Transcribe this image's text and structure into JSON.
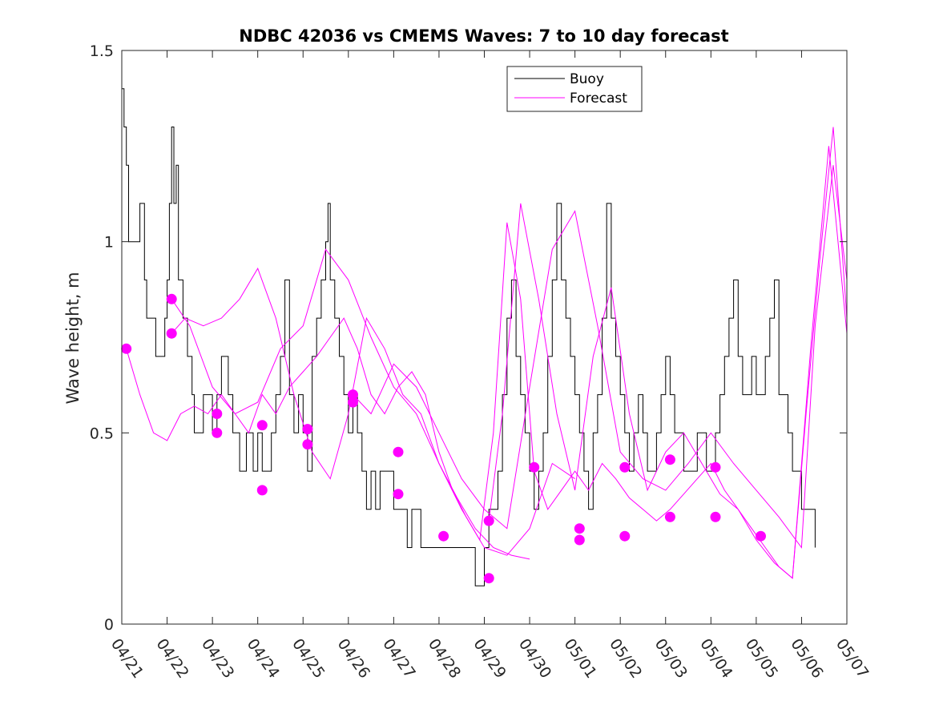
{
  "chart_data": {
    "type": "line",
    "title": "NDBC 42036 vs CMEMS Waves: 7 to 10 day forecast",
    "xlabel": "",
    "ylabel": "Wave height, m",
    "xlim": [
      0,
      16
    ],
    "ylim": [
      0,
      1.5
    ],
    "x_ticks": [
      0,
      1,
      2,
      3,
      4,
      5,
      6,
      7,
      8,
      9,
      10,
      11,
      12,
      13,
      14,
      15,
      16
    ],
    "x_tick_labels": [
      "04/21",
      "04/22",
      "04/23",
      "04/24",
      "04/25",
      "04/26",
      "04/27",
      "04/28",
      "04/29",
      "04/30",
      "05/01",
      "05/02",
      "05/03",
      "05/04",
      "05/05",
      "05/06",
      "05/07"
    ],
    "y_ticks": [
      0,
      0.5,
      1,
      1.5
    ],
    "y_tick_labels": [
      "0",
      "0.5",
      "1",
      "1.5"
    ],
    "x_note": "x values are days since 04/21 00:00",
    "grid": false,
    "legend_position": "top-center",
    "colors": {
      "buoy": "#000000",
      "forecast": "#ff00ff"
    },
    "series": [
      {
        "name": "Buoy",
        "color": "#000000",
        "step": true,
        "x": [
          0,
          0.05,
          0.1,
          0.15,
          0.25,
          0.4,
          0.5,
          0.55,
          0.65,
          0.75,
          0.95,
          1.0,
          1.05,
          1.1,
          1.15,
          1.2,
          1.25,
          1.35,
          1.45,
          1.55,
          1.6,
          1.7,
          1.8,
          1.9,
          2.0,
          2.1,
          2.2,
          2.35,
          2.45,
          2.5,
          2.6,
          2.65,
          2.75,
          2.9,
          3.0,
          3.1,
          3.2,
          3.3,
          3.4,
          3.5,
          3.6,
          3.7,
          3.8,
          3.9,
          4.0,
          4.1,
          4.2,
          4.3,
          4.4,
          4.5,
          4.55,
          4.6,
          4.7,
          4.8,
          4.9,
          5.0,
          5.1,
          5.2,
          5.3,
          5.4,
          5.5,
          5.6,
          5.7,
          5.8,
          5.9,
          6.0,
          6.1,
          6.2,
          6.3,
          6.4,
          6.5,
          6.6,
          6.7,
          6.8,
          6.9,
          7.0,
          7.2,
          7.4,
          7.6,
          7.8,
          8.0,
          8.1,
          8.2,
          8.3,
          8.4,
          8.5,
          8.6,
          8.7,
          8.8,
          8.9,
          9.0,
          9.1,
          9.2,
          9.3,
          9.4,
          9.5,
          9.6,
          9.7,
          9.8,
          9.9,
          10.0,
          10.1,
          10.2,
          10.3,
          10.4,
          10.5,
          10.6,
          10.7,
          10.8,
          10.9,
          11.0,
          11.1,
          11.2,
          11.3,
          11.4,
          11.5,
          11.6,
          11.7,
          11.8,
          11.9,
          12.0,
          12.1,
          12.2,
          12.3,
          12.4,
          12.5,
          12.6,
          12.7,
          12.8,
          12.9,
          13.0,
          13.1,
          13.2,
          13.3,
          13.4,
          13.5,
          13.6,
          13.7,
          13.8,
          13.9,
          14.0,
          14.1,
          14.2,
          14.3,
          14.4,
          14.5,
          14.6,
          14.7,
          14.8,
          14.9,
          15.0,
          15.1,
          15.2,
          15.3
        ],
        "y": [
          1.4,
          1.3,
          1.2,
          1.0,
          1.0,
          1.1,
          0.9,
          0.8,
          0.8,
          0.7,
          0.8,
          0.9,
          1.1,
          1.3,
          1.1,
          1.2,
          0.9,
          0.8,
          0.7,
          0.6,
          0.5,
          0.5,
          0.6,
          0.6,
          0.5,
          0.6,
          0.7,
          0.6,
          0.5,
          0.5,
          0.4,
          0.4,
          0.5,
          0.4,
          0.5,
          0.4,
          0.4,
          0.5,
          0.6,
          0.7,
          0.9,
          0.6,
          0.5,
          0.6,
          0.5,
          0.4,
          0.7,
          0.8,
          0.9,
          1.0,
          1.1,
          0.9,
          0.8,
          0.7,
          0.6,
          0.5,
          0.6,
          0.5,
          0.4,
          0.3,
          0.4,
          0.3,
          0.4,
          0.4,
          0.4,
          0.3,
          0.3,
          0.3,
          0.2,
          0.3,
          0.3,
          0.2,
          0.2,
          0.2,
          0.2,
          0.2,
          0.2,
          0.2,
          0.2,
          0.1,
          0.2,
          0.3,
          0.3,
          0.4,
          0.6,
          0.8,
          0.9,
          0.7,
          0.6,
          0.5,
          0.4,
          0.3,
          0.4,
          0.5,
          0.7,
          0.9,
          1.1,
          0.9,
          0.8,
          0.7,
          0.6,
          0.5,
          0.4,
          0.3,
          0.5,
          0.6,
          0.8,
          1.1,
          0.8,
          0.7,
          0.6,
          0.5,
          0.4,
          0.5,
          0.6,
          0.5,
          0.4,
          0.4,
          0.5,
          0.6,
          0.7,
          0.6,
          0.5,
          0.5,
          0.4,
          0.4,
          0.4,
          0.5,
          0.5,
          0.4,
          0.4,
          0.5,
          0.6,
          0.7,
          0.8,
          0.9,
          0.7,
          0.6,
          0.6,
          0.7,
          0.6,
          0.6,
          0.7,
          0.8,
          0.9,
          0.6,
          0.6,
          0.5,
          0.4,
          0.4,
          0.3,
          0.3,
          0.3,
          0.2
        ]
      },
      {
        "name": "Forecast",
        "color": "#ff00ff",
        "x": [
          0.1,
          0.4,
          0.7,
          1.0,
          1.3,
          1.6,
          1.9,
          2.2,
          2.5,
          2.8,
          3.1,
          3.4,
          3.7,
          4.0,
          4.3,
          4.6,
          4.9,
          5.2,
          5.5,
          5.8,
          6.1,
          6.4,
          6.7,
          7.0,
          7.3,
          7.6,
          7.9,
          8.2,
          8.5,
          8.8,
          9.1,
          9.4,
          9.7,
          10.0,
          10.3,
          10.6,
          10.9,
          11.2,
          11.5,
          11.8,
          12.1,
          12.4,
          12.7,
          13.0,
          13.3,
          13.6,
          13.9,
          14.2,
          14.5,
          14.8,
          15.1,
          15.4,
          15.7,
          16.0
        ],
        "y": [
          0.72,
          0.6,
          0.5,
          0.48,
          0.55,
          0.57,
          0.55,
          0.6,
          0.55,
          0.5,
          0.6,
          0.55,
          0.62,
          0.66,
          0.7,
          0.75,
          0.8,
          0.72,
          0.6,
          0.55,
          0.62,
          0.66,
          0.6,
          0.45,
          0.35,
          0.28,
          0.22,
          0.5,
          1.05,
          0.85,
          0.4,
          0.3,
          0.35,
          0.4,
          0.35,
          0.42,
          0.38,
          0.33,
          0.3,
          0.27,
          0.3,
          0.34,
          0.38,
          0.42,
          0.35,
          0.3,
          0.25,
          0.2,
          0.15,
          0.12,
          0.55,
          0.95,
          1.3,
          0.8
        ]
      }
    ],
    "forecast_markers": {
      "x": [
        0.1,
        1.1,
        1.1,
        2.1,
        2.1,
        3.1,
        3.1,
        4.1,
        4.1,
        5.1,
        5.1,
        6.1,
        6.1,
        7.1,
        8.1,
        8.1,
        9.1,
        10.1,
        10.1,
        11.1,
        11.1,
        12.1,
        12.1,
        13.1,
        13.1,
        14.1
      ],
      "y": [
        0.72,
        0.85,
        0.76,
        0.55,
        0.5,
        0.52,
        0.35,
        0.51,
        0.47,
        0.6,
        0.58,
        0.45,
        0.34,
        0.23,
        0.27,
        0.12,
        0.41,
        0.22,
        0.25,
        0.23,
        0.41,
        0.28,
        0.43,
        0.41,
        0.28,
        0.23
      ]
    },
    "forecast_extra_runs": [
      {
        "x": [
          1.1,
          1.5,
          2.0,
          2.5,
          3.0,
          3.5,
          4.0,
          4.5,
          5.0,
          5.5,
          6.0,
          6.5,
          7.0,
          7.5,
          8.0,
          8.5,
          9.0,
          9.5,
          10.0
        ],
        "y": [
          0.85,
          0.78,
          0.62,
          0.55,
          0.58,
          0.72,
          0.78,
          0.98,
          0.9,
          0.75,
          0.62,
          0.55,
          0.42,
          0.3,
          0.2,
          0.18,
          0.25,
          0.42,
          0.38
        ]
      },
      {
        "x": [
          1.1,
          1.4,
          1.8,
          2.2,
          2.6,
          3.0,
          3.4,
          3.8,
          4.2,
          4.6,
          5.0,
          5.4,
          5.8,
          6.2,
          6.6,
          7.0,
          7.4,
          7.8,
          8.2,
          8.6,
          9.0
        ],
        "y": [
          0.76,
          0.8,
          0.78,
          0.8,
          0.85,
          0.93,
          0.8,
          0.6,
          0.45,
          0.38,
          0.55,
          0.8,
          0.72,
          0.6,
          0.55,
          0.42,
          0.33,
          0.25,
          0.2,
          0.18,
          0.17
        ]
      },
      {
        "x": [
          5.1,
          5.5,
          6.0,
          6.5,
          7.0,
          7.5,
          8.0,
          8.5,
          9.0,
          9.5,
          10.0,
          10.5,
          11.0,
          11.5,
          12.0,
          12.5,
          13.0,
          13.5,
          14.0,
          14.5,
          15.0,
          15.3,
          15.7,
          16.0
        ],
        "y": [
          0.6,
          0.55,
          0.68,
          0.62,
          0.5,
          0.38,
          0.3,
          0.25,
          0.62,
          0.98,
          1.08,
          0.78,
          0.45,
          0.38,
          0.35,
          0.42,
          0.5,
          0.42,
          0.35,
          0.28,
          0.2,
          0.78,
          1.2,
          0.9
        ]
      },
      {
        "x": [
          8.1,
          8.4,
          8.8,
          9.2,
          9.6,
          10.0,
          10.4,
          10.8,
          11.2,
          11.6,
          12.0,
          12.4,
          12.8,
          13.2,
          13.6,
          14.0,
          14.4,
          14.8,
          15.2,
          15.6,
          16.0
        ],
        "y": [
          0.27,
          0.55,
          1.1,
          0.85,
          0.55,
          0.35,
          0.7,
          0.88,
          0.55,
          0.35,
          0.45,
          0.5,
          0.42,
          0.34,
          0.3,
          0.22,
          0.16,
          0.12,
          0.72,
          1.25,
          0.76
        ]
      }
    ]
  }
}
